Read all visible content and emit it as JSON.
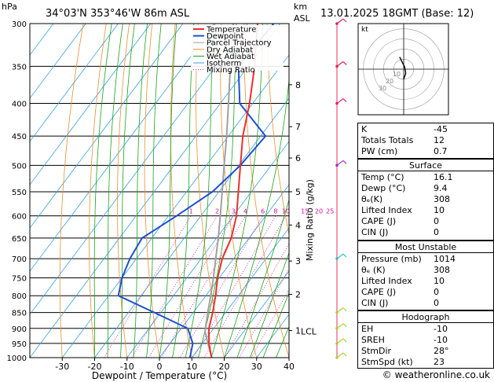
{
  "header": {
    "location": "34°03'N  353°46'W  86m  ASL",
    "datetime": "13.01.2025  18GMT  (Base: 12)",
    "hpa_label": "hPa",
    "km_label": "km",
    "asl_label": "ASL"
  },
  "footer": {
    "copyright": "© weatheronline.co.uk"
  },
  "chart_data": {
    "type": "skew-t",
    "xlabel": "Dewpoint / Temperature (°C)",
    "ylabel_right": "Mixing Ratio (g/kg)",
    "pressure_levels": [
      300,
      350,
      400,
      450,
      500,
      550,
      600,
      650,
      700,
      750,
      800,
      850,
      900,
      950,
      1000
    ],
    "temp_ticks": [
      -30,
      -20,
      -10,
      0,
      10,
      20,
      30,
      40
    ],
    "xlim": [
      -40,
      40
    ],
    "height_ticks": [
      {
        "p": 374,
        "label": "8"
      },
      {
        "p": 435,
        "label": "7"
      },
      {
        "p": 487,
        "label": "6"
      },
      {
        "p": 550,
        "label": "5"
      },
      {
        "p": 620,
        "label": "4"
      },
      {
        "p": 706,
        "label": "3"
      },
      {
        "p": 796,
        "label": "2"
      },
      {
        "p": 907,
        "label": "1"
      }
    ],
    "lcl": {
      "p": 910,
      "label": "LCL"
    },
    "mixing_ratio_lines": [
      1,
      2,
      3,
      4,
      6,
      8,
      10,
      15,
      20,
      25
    ],
    "mixing_ratio_labels": [
      "1",
      "2",
      "3",
      "4",
      "6",
      "8",
      "10",
      "15",
      "20",
      "25"
    ],
    "legend": [
      "Temperature",
      "Dewpoint",
      "Parcel Trajectory",
      "Dry Adiabat",
      "Wet Adiabat",
      "Isotherm",
      "Mixing Ratio"
    ],
    "temperature": [
      {
        "p": 1000,
        "t": 16.1
      },
      {
        "p": 950,
        "t": 12.0
      },
      {
        "p": 900,
        "t": 8.5
      },
      {
        "p": 850,
        "t": 6.0
      },
      {
        "p": 800,
        "t": 3.0
      },
      {
        "p": 750,
        "t": -0.5
      },
      {
        "p": 700,
        "t": -3.5
      },
      {
        "p": 650,
        "t": -5.5
      },
      {
        "p": 600,
        "t": -9.0
      },
      {
        "p": 550,
        "t": -14.0
      },
      {
        "p": 500,
        "t": -19.5
      },
      {
        "p": 450,
        "t": -25.5
      },
      {
        "p": 400,
        "t": -31.0
      },
      {
        "p": 350,
        "t": -38.0
      },
      {
        "p": 300,
        "t": -47.0
      }
    ],
    "dewpoint": [
      {
        "p": 1000,
        "t": 9.4
      },
      {
        "p": 950,
        "t": 7.0
      },
      {
        "p": 900,
        "t": 2.0
      },
      {
        "p": 850,
        "t": -12.0
      },
      {
        "p": 800,
        "t": -27.0
      },
      {
        "p": 750,
        "t": -30.0
      },
      {
        "p": 700,
        "t": -32.0
      },
      {
        "p": 650,
        "t": -33.0
      },
      {
        "p": 600,
        "t": -27.5
      },
      {
        "p": 550,
        "t": -22.0
      },
      {
        "p": 500,
        "t": -19.5
      },
      {
        "p": 450,
        "t": -18.5
      },
      {
        "p": 400,
        "t": -34.0
      },
      {
        "p": 350,
        "t": -43.0
      },
      {
        "p": 300,
        "t": -42.0
      }
    ],
    "parcel": [
      {
        "p": 1000,
        "t": 16.1
      },
      {
        "p": 910,
        "t": 8.0
      },
      {
        "p": 850,
        "t": 4.5
      },
      {
        "p": 800,
        "t": 1.5
      },
      {
        "p": 750,
        "t": -1.8
      },
      {
        "p": 700,
        "t": -5.5
      },
      {
        "p": 650,
        "t": -9.5
      },
      {
        "p": 600,
        "t": -14.0
      },
      {
        "p": 550,
        "t": -19.0
      },
      {
        "p": 500,
        "t": -24.5
      },
      {
        "p": 450,
        "t": -30.5
      },
      {
        "p": 400,
        "t": -37.5
      },
      {
        "p": 350,
        "t": -45.5
      },
      {
        "p": 300,
        "t": -54.5
      }
    ],
    "wind_barb_levels": [
      300,
      350,
      400,
      500,
      700,
      850,
      900,
      950,
      1000
    ]
  },
  "indices": [
    {
      "label": "K",
      "value": "-45"
    },
    {
      "label": "Totals Totals",
      "value": "12"
    },
    {
      "label": "PW (cm)",
      "value": "0.7"
    }
  ],
  "surface": {
    "title": "Surface",
    "rows": [
      {
        "label": "Temp (°C)",
        "value": "16.1"
      },
      {
        "label": "Dewp (°C)",
        "value": "9.4"
      },
      {
        "label": "θₑ(K)",
        "value": "308"
      },
      {
        "label": "Lifted Index",
        "value": "10"
      },
      {
        "label": "CAPE (J)",
        "value": "0"
      },
      {
        "label": "CIN (J)",
        "value": "0"
      }
    ]
  },
  "most_unstable": {
    "title": "Most Unstable",
    "rows": [
      {
        "label": "Pressure (mb)",
        "value": "1014"
      },
      {
        "label": "θₑ (K)",
        "value": "308"
      },
      {
        "label": "Lifted Index",
        "value": "10"
      },
      {
        "label": "CAPE (J)",
        "value": "0"
      },
      {
        "label": "CIN (J)",
        "value": "0"
      }
    ]
  },
  "hodograph_table": {
    "title": "Hodograph",
    "rows": [
      {
        "label": "EH",
        "value": "-10"
      },
      {
        "label": "SREH",
        "value": "-10"
      },
      {
        "label": "StmDir",
        "value": "28°"
      },
      {
        "label": "StmSpd (kt)",
        "value": "23"
      }
    ]
  },
  "hodograph": {
    "unit_label": "kt",
    "ring_labels": [
      "10",
      "20",
      "30"
    ],
    "trace": [
      [
        0,
        -10
      ],
      [
        2,
        -4
      ],
      [
        1,
        2
      ],
      [
        -2,
        8
      ],
      [
        -4,
        12
      ]
    ]
  },
  "colors": {
    "temperature": "#e8302a",
    "dewpoint": "#1f4fd6",
    "parcel": "#a0a0a0",
    "dry_adiabat": "#e89030",
    "wet_adiabat": "#1aa31a",
    "isotherm": "#30a0e0",
    "mixing_ratio": "#d0109a"
  }
}
